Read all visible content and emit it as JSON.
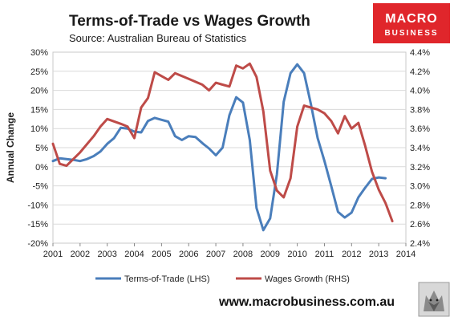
{
  "header": {
    "title": "Terms-of-Trade vs Wages Growth",
    "subtitle": "Source: Australian Bureau of Statistics"
  },
  "logo": {
    "line1": "MACRO",
    "line2": "BUSINESS",
    "color": "#e0262b"
  },
  "footer": {
    "url": "www.macrobusiness.com.au"
  },
  "chart_data": {
    "type": "line",
    "title": "Terms-of-Trade vs Wages Growth",
    "ylabel": "Annual Change",
    "x_ticks": [
      "2001",
      "2002",
      "2003",
      "2004",
      "2005",
      "2006",
      "2007",
      "2008",
      "2009",
      "2010",
      "2011",
      "2012",
      "2013",
      "2014"
    ],
    "xlim": [
      2001,
      2014
    ],
    "y_left": {
      "lim": [
        -20,
        30
      ],
      "ticks": [
        "-20%",
        "-15%",
        "-10%",
        "-5%",
        "0%",
        "5%",
        "10%",
        "15%",
        "20%",
        "25%",
        "30%"
      ]
    },
    "y_right": {
      "lim": [
        2.4,
        4.4
      ],
      "ticks": [
        "2.4%",
        "2.6%",
        "2.8%",
        "3.0%",
        "3.2%",
        "3.4%",
        "3.6%",
        "3.8%",
        "4.0%",
        "4.2%",
        "4.4%"
      ]
    },
    "legend_position": "bottom",
    "series": [
      {
        "name": "Terms-of-Trade (LHS)",
        "axis": "left",
        "color": "#4a7ebb",
        "x": [
          2001.0,
          2001.25,
          2001.5,
          2001.75,
          2002.0,
          2002.25,
          2002.5,
          2002.75,
          2003.0,
          2003.25,
          2003.5,
          2003.75,
          2004.0,
          2004.25,
          2004.5,
          2004.75,
          2005.0,
          2005.25,
          2005.5,
          2005.75,
          2006.0,
          2006.25,
          2006.5,
          2006.75,
          2007.0,
          2007.25,
          2007.5,
          2007.75,
          2008.0,
          2008.25,
          2008.5,
          2008.75,
          2009.0,
          2009.25,
          2009.5,
          2009.75,
          2010.0,
          2010.25,
          2010.5,
          2010.75,
          2011.0,
          2011.25,
          2011.5,
          2011.75,
          2012.0,
          2012.25,
          2012.5,
          2012.75,
          2013.0,
          2013.25
        ],
        "values": [
          1.5,
          2.2,
          2.0,
          1.8,
          1.5,
          2.0,
          2.8,
          4.0,
          6.0,
          7.5,
          10.2,
          10.0,
          9.2,
          9.0,
          12.0,
          12.8,
          12.3,
          11.8,
          8.0,
          7.0,
          8.0,
          7.8,
          6.2,
          4.8,
          3.0,
          5.0,
          13.5,
          18.2,
          16.8,
          7.0,
          -10.8,
          -16.6,
          -13.5,
          -2.0,
          17.0,
          24.5,
          26.8,
          24.5,
          16.5,
          7.5,
          1.5,
          -5.0,
          -11.8,
          -13.3,
          -12.0,
          -8.0,
          -5.5,
          -3.2,
          -2.8,
          -3.0
        ]
      },
      {
        "name": "Wages Growth (RHS)",
        "axis": "right",
        "color": "#be4b48",
        "x": [
          2001.0,
          2001.25,
          2001.5,
          2002.0,
          2002.5,
          2002.75,
          2003.0,
          2003.5,
          2003.75,
          2004.0,
          2004.25,
          2004.5,
          2004.75,
          2005.0,
          2005.25,
          2005.5,
          2005.75,
          2006.0,
          2006.25,
          2006.5,
          2006.75,
          2007.0,
          2007.25,
          2007.5,
          2007.75,
          2008.0,
          2008.25,
          2008.5,
          2008.75,
          2009.0,
          2009.25,
          2009.5,
          2009.75,
          2010.0,
          2010.25,
          2010.5,
          2010.75,
          2011.0,
          2011.25,
          2011.5,
          2011.75,
          2012.0,
          2012.25,
          2012.5,
          2012.75,
          2013.0,
          2013.25,
          2013.5
        ],
        "values": [
          3.44,
          3.23,
          3.21,
          3.35,
          3.52,
          3.62,
          3.7,
          3.65,
          3.62,
          3.5,
          3.82,
          3.92,
          4.19,
          4.15,
          4.11,
          4.18,
          4.15,
          4.12,
          4.09,
          4.06,
          4.0,
          4.08,
          4.06,
          4.04,
          4.26,
          4.23,
          4.28,
          4.14,
          3.78,
          3.16,
          2.95,
          2.88,
          3.08,
          3.62,
          3.84,
          3.82,
          3.8,
          3.76,
          3.68,
          3.55,
          3.73,
          3.6,
          3.66,
          3.42,
          3.15,
          2.96,
          2.82,
          2.63
        ]
      }
    ]
  }
}
